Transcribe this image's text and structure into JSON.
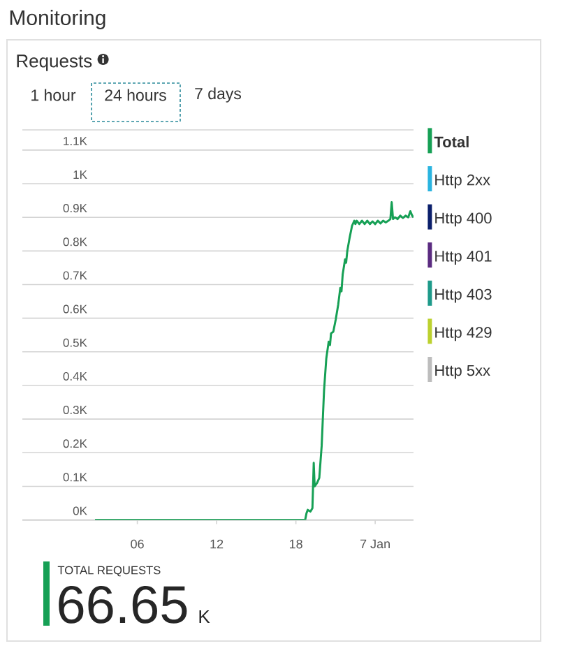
{
  "chart_data": {
    "type": "line",
    "title": "Monitoring",
    "subtitle": "Requests",
    "annotations": [
      "1 hour",
      "24 hours",
      "7 days",
      "TOTAL REQUESTS",
      "66.65",
      "K"
    ],
    "x": [
      2.8,
      18.7,
      18.8,
      18.9,
      19.1,
      19.25,
      19.35,
      19.42,
      19.6,
      19.77,
      19.95,
      20.13,
      20.3,
      20.48,
      20.58,
      20.66,
      20.83,
      21.01,
      21.2,
      21.36,
      21.45,
      21.54,
      21.72,
      21.8,
      21.89,
      22.07,
      22.25,
      22.42,
      22.5,
      22.6,
      22.8,
      23.0,
      23.2,
      23.4,
      23.6,
      23.8,
      24.0,
      24.2,
      24.4,
      24.6,
      24.8,
      25.0,
      25.15,
      25.25,
      25.35,
      25.5,
      25.7,
      25.9,
      26.1,
      26.3,
      26.5,
      26.66,
      26.8,
      26.9
    ],
    "series": [
      {
        "name": "Total",
        "color": "#16a055",
        "values": [
          0,
          0,
          20,
          30,
          25,
          35,
          170,
          100,
          110,
          125,
          220,
          385,
          480,
          530,
          520,
          555,
          560,
          595,
          640,
          690,
          680,
          730,
          775,
          765,
          800,
          840,
          875,
          890,
          880,
          890,
          880,
          890,
          880,
          890,
          880,
          888,
          880,
          890,
          882,
          890,
          885,
          890,
          895,
          945,
          895,
          900,
          895,
          905,
          898,
          905,
          900,
          918,
          905,
          900
        ]
      },
      {
        "name": "Http 2xx",
        "color": "#2ab4e0",
        "values": [
          null,
          null,
          null,
          null,
          null,
          null,
          null,
          null,
          null,
          null,
          null,
          null,
          null,
          null,
          null,
          null,
          null,
          null,
          null,
          null,
          null,
          null,
          null,
          null,
          null,
          null,
          null,
          null,
          null,
          null,
          null,
          null,
          null,
          null,
          null,
          null,
          null,
          null,
          null,
          null,
          null,
          null,
          null,
          null,
          null,
          null,
          null,
          null,
          null,
          null,
          null,
          null,
          null,
          null
        ]
      },
      {
        "name": "Http 400",
        "color": "#0b1f6b",
        "values": [
          null,
          null,
          null,
          null,
          null,
          null,
          null,
          null,
          null,
          null,
          null,
          null,
          null,
          null,
          null,
          null,
          null,
          null,
          null,
          null,
          null,
          null,
          null,
          null,
          null,
          null,
          null,
          null,
          null,
          null,
          null,
          null,
          null,
          null,
          null,
          null,
          null,
          null,
          null,
          null,
          null,
          null,
          null,
          null,
          null,
          null,
          null,
          null,
          null,
          null,
          null,
          null,
          null,
          null
        ]
      },
      {
        "name": "Http 401",
        "color": "#5b2b80",
        "values": [
          null,
          null,
          null,
          null,
          null,
          null,
          null,
          null,
          null,
          null,
          null,
          null,
          null,
          null,
          null,
          null,
          null,
          null,
          null,
          null,
          null,
          null,
          null,
          null,
          null,
          null,
          null,
          null,
          null,
          null,
          null,
          null,
          null,
          null,
          null,
          null,
          null,
          null,
          null,
          null,
          null,
          null,
          null,
          null,
          null,
          null,
          null,
          null,
          null,
          null,
          null,
          null,
          null,
          null
        ]
      },
      {
        "name": "Http 403",
        "color": "#1e9a8a",
        "values": [
          null,
          null,
          null,
          null,
          null,
          null,
          null,
          null,
          null,
          null,
          null,
          null,
          null,
          null,
          null,
          null,
          null,
          null,
          null,
          null,
          null,
          null,
          null,
          null,
          null,
          null,
          null,
          null,
          null,
          null,
          null,
          null,
          null,
          null,
          null,
          null,
          null,
          null,
          null,
          null,
          null,
          null,
          null,
          null,
          null,
          null,
          null,
          null,
          null,
          null,
          null,
          null,
          null,
          null
        ]
      },
      {
        "name": "Http 429",
        "color": "#bcd12f",
        "values": [
          null,
          null,
          null,
          null,
          null,
          null,
          null,
          null,
          null,
          null,
          null,
          null,
          null,
          null,
          null,
          null,
          null,
          null,
          null,
          null,
          null,
          null,
          null,
          null,
          null,
          null,
          null,
          null,
          null,
          null,
          null,
          null,
          null,
          null,
          null,
          null,
          null,
          null,
          null,
          null,
          null,
          null,
          null,
          null,
          null,
          null,
          null,
          null,
          null,
          null,
          null,
          null,
          null,
          null
        ]
      },
      {
        "name": "Http 5xx",
        "color": "#bdbdbd",
        "values": [
          null,
          null,
          null,
          null,
          null,
          null,
          null,
          null,
          null,
          null,
          null,
          null,
          null,
          null,
          null,
          null,
          null,
          null,
          null,
          null,
          null,
          null,
          null,
          null,
          null,
          null,
          null,
          null,
          null,
          null,
          null,
          null,
          null,
          null,
          null,
          null,
          null,
          null,
          null,
          null,
          null,
          null,
          null,
          null,
          null,
          null,
          null,
          null,
          null,
          null,
          null,
          null,
          null,
          null
        ]
      }
    ],
    "xlim": [
      -2.7,
      26.9
    ],
    "ylim": [
      0,
      1160
    ],
    "xticks": [
      {
        "value": 6,
        "label": "06"
      },
      {
        "value": 12,
        "label": "12"
      },
      {
        "value": 18,
        "label": "18"
      },
      {
        "value": 24,
        "label": "7 Jan"
      }
    ],
    "yticks": [
      {
        "value": 0,
        "label": "0K"
      },
      {
        "value": 100,
        "label": "0.1K"
      },
      {
        "value": 200,
        "label": "0.2K"
      },
      {
        "value": 300,
        "label": "0.3K"
      },
      {
        "value": 400,
        "label": "0.4K"
      },
      {
        "value": 500,
        "label": "0.5K"
      },
      {
        "value": 600,
        "label": "0.6K"
      },
      {
        "value": 700,
        "label": "0.7K"
      },
      {
        "value": 800,
        "label": "0.8K"
      },
      {
        "value": 900,
        "label": "0.9K"
      },
      {
        "value": 1000,
        "label": "1K"
      },
      {
        "value": 1100,
        "label": "1.1K"
      }
    ],
    "grid": "y",
    "legend": "right"
  }
}
